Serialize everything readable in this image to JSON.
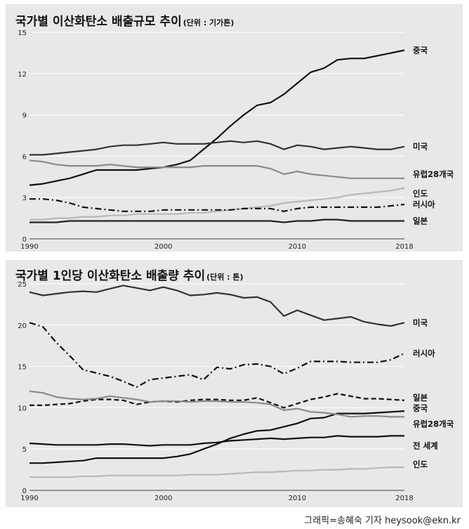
{
  "chart_data": [
    {
      "type": "line",
      "title": "국가별 이산화탄소 배출규모 추이",
      "unit": "(단위 : 기가톤)",
      "x": [
        1990,
        1991,
        1992,
        1993,
        1994,
        1995,
        1996,
        1997,
        1998,
        1999,
        2000,
        2001,
        2002,
        2003,
        2004,
        2005,
        2006,
        2007,
        2008,
        2009,
        2010,
        2011,
        2012,
        2013,
        2014,
        2015,
        2016,
        2017,
        2018
      ],
      "xticks": [
        "1990",
        "2000",
        "2010",
        "2018"
      ],
      "yticks": [
        "0",
        "3",
        "6",
        "9",
        "12",
        "15"
      ],
      "ylim": [
        0,
        15
      ],
      "xlim": [
        1990,
        2018
      ],
      "grid": true,
      "series": [
        {
          "name": "중국",
          "color": "#111111",
          "dash": "solid",
          "values": [
            3.9,
            4.0,
            4.2,
            4.4,
            4.7,
            5.0,
            5.0,
            5.0,
            5.0,
            5.1,
            5.2,
            5.4,
            5.7,
            6.5,
            7.3,
            8.2,
            9.0,
            9.7,
            9.9,
            10.5,
            11.3,
            12.1,
            12.4,
            13.0,
            13.1,
            13.1,
            13.3,
            13.5,
            13.7
          ]
        },
        {
          "name": "미국",
          "color": "#333333",
          "dash": "solid",
          "values": [
            6.1,
            6.1,
            6.2,
            6.3,
            6.4,
            6.5,
            6.7,
            6.8,
            6.8,
            6.9,
            7.0,
            6.9,
            6.9,
            6.9,
            7.0,
            7.1,
            7.0,
            7.1,
            6.9,
            6.5,
            6.8,
            6.7,
            6.5,
            6.6,
            6.7,
            6.6,
            6.5,
            6.5,
            6.7
          ]
        },
        {
          "name": "유럽28개국",
          "color": "#8a8a8a",
          "dash": "solid",
          "values": [
            5.7,
            5.6,
            5.4,
            5.3,
            5.3,
            5.3,
            5.4,
            5.3,
            5.2,
            5.2,
            5.2,
            5.2,
            5.2,
            5.3,
            5.3,
            5.3,
            5.3,
            5.3,
            5.1,
            4.7,
            4.9,
            4.7,
            4.6,
            4.5,
            4.4,
            4.4,
            4.4,
            4.4,
            4.4
          ]
        },
        {
          "name": "인도",
          "color": "#b8b8b8",
          "dash": "solid",
          "values": [
            1.4,
            1.4,
            1.5,
            1.5,
            1.6,
            1.6,
            1.7,
            1.7,
            1.8,
            1.8,
            1.8,
            1.8,
            1.9,
            1.9,
            2.0,
            2.1,
            2.2,
            2.3,
            2.4,
            2.6,
            2.7,
            2.8,
            2.9,
            3.0,
            3.2,
            3.3,
            3.4,
            3.5,
            3.7
          ]
        },
        {
          "name": "러시아",
          "color": "#111111",
          "dash": "dashdot",
          "values": [
            2.9,
            2.9,
            2.8,
            2.6,
            2.3,
            2.2,
            2.1,
            2.0,
            2.0,
            2.0,
            2.1,
            2.1,
            2.1,
            2.1,
            2.1,
            2.1,
            2.2,
            2.2,
            2.2,
            2.0,
            2.2,
            2.3,
            2.3,
            2.3,
            2.3,
            2.3,
            2.3,
            2.4,
            2.5
          ]
        },
        {
          "name": "일본",
          "color": "#222222",
          "dash": "solid",
          "values": [
            1.2,
            1.2,
            1.2,
            1.3,
            1.3,
            1.3,
            1.3,
            1.3,
            1.3,
            1.3,
            1.3,
            1.3,
            1.3,
            1.3,
            1.3,
            1.3,
            1.3,
            1.3,
            1.3,
            1.2,
            1.3,
            1.3,
            1.4,
            1.4,
            1.3,
            1.3,
            1.3,
            1.3,
            1.3
          ]
        }
      ]
    },
    {
      "type": "line",
      "title": "국가별 1인당 이산화탄소 배출량 추이",
      "unit": "(단위 : 톤)",
      "x": [
        1990,
        1991,
        1992,
        1993,
        1994,
        1995,
        1996,
        1997,
        1998,
        1999,
        2000,
        2001,
        2002,
        2003,
        2004,
        2005,
        2006,
        2007,
        2008,
        2009,
        2010,
        2011,
        2012,
        2013,
        2014,
        2015,
        2016,
        2017,
        2018
      ],
      "xticks": [
        "1990",
        "2000",
        "2010",
        "2018"
      ],
      "yticks": [
        "0",
        "5",
        "10",
        "15",
        "20",
        "25"
      ],
      "ylim": [
        0,
        25
      ],
      "xlim": [
        1990,
        2018
      ],
      "grid": true,
      "series": [
        {
          "name": "미국",
          "color": "#333333",
          "dash": "solid",
          "values": [
            24.0,
            23.6,
            23.8,
            24.0,
            24.1,
            24.0,
            24.4,
            24.8,
            24.5,
            24.2,
            24.6,
            24.2,
            23.6,
            23.7,
            23.9,
            23.7,
            23.3,
            23.4,
            22.8,
            21.1,
            21.8,
            21.2,
            20.6,
            20.8,
            21.0,
            20.4,
            20.1,
            19.9,
            20.3
          ]
        },
        {
          "name": "러시아",
          "color": "#111111",
          "dash": "dashdot",
          "values": [
            20.3,
            19.8,
            17.9,
            16.3,
            14.6,
            14.2,
            13.8,
            13.2,
            12.5,
            13.4,
            13.6,
            13.8,
            14.0,
            13.4,
            14.9,
            14.7,
            15.2,
            15.3,
            15.0,
            14.1,
            14.8,
            15.6,
            15.6,
            15.6,
            15.5,
            15.5,
            15.5,
            15.8,
            16.6
          ]
        },
        {
          "name": "일본",
          "color": "#111111",
          "dash": "dashed",
          "values": [
            10.3,
            10.3,
            10.4,
            10.5,
            10.8,
            11.0,
            11.0,
            10.9,
            10.4,
            10.7,
            10.8,
            10.7,
            10.9,
            11.0,
            11.0,
            10.9,
            10.9,
            11.2,
            10.6,
            10.0,
            10.5,
            11.0,
            11.3,
            11.7,
            11.4,
            11.1,
            11.1,
            11.0,
            10.9
          ]
        },
        {
          "name": "중국",
          "color": "#111111",
          "dash": "solid",
          "values": [
            3.3,
            3.3,
            3.4,
            3.5,
            3.6,
            3.9,
            3.9,
            3.9,
            3.9,
            3.9,
            3.9,
            4.1,
            4.4,
            5.0,
            5.6,
            6.3,
            6.8,
            7.2,
            7.3,
            7.7,
            8.1,
            8.7,
            8.8,
            9.3,
            9.3,
            9.3,
            9.4,
            9.5,
            9.6
          ]
        },
        {
          "name": "유럽28개국",
          "color": "#8a8a8a",
          "dash": "solid",
          "values": [
            12.0,
            11.8,
            11.3,
            11.1,
            11.0,
            11.1,
            11.4,
            11.2,
            11.0,
            10.7,
            10.8,
            10.8,
            10.7,
            10.8,
            10.8,
            10.7,
            10.7,
            10.6,
            10.4,
            9.7,
            9.9,
            9.5,
            9.4,
            9.2,
            8.9,
            9.0,
            9.0,
            8.9,
            8.9
          ]
        },
        {
          "name": "전 세계",
          "color": "#111111",
          "dash": "solid",
          "values": [
            5.7,
            5.6,
            5.5,
            5.5,
            5.5,
            5.5,
            5.6,
            5.6,
            5.5,
            5.4,
            5.5,
            5.5,
            5.5,
            5.7,
            5.8,
            6.0,
            6.1,
            6.2,
            6.3,
            6.2,
            6.3,
            6.4,
            6.4,
            6.6,
            6.5,
            6.5,
            6.5,
            6.6,
            6.6
          ]
        },
        {
          "name": "인도",
          "color": "#b8b8b8",
          "dash": "solid",
          "values": [
            1.6,
            1.6,
            1.6,
            1.6,
            1.7,
            1.7,
            1.8,
            1.8,
            1.8,
            1.8,
            1.8,
            1.8,
            1.9,
            1.9,
            1.9,
            2.0,
            2.1,
            2.2,
            2.2,
            2.3,
            2.4,
            2.4,
            2.5,
            2.5,
            2.6,
            2.6,
            2.7,
            2.8,
            2.8
          ]
        }
      ]
    }
  ],
  "credit": "그래픽=송혜숙 기자 heysook@ekn.kr"
}
